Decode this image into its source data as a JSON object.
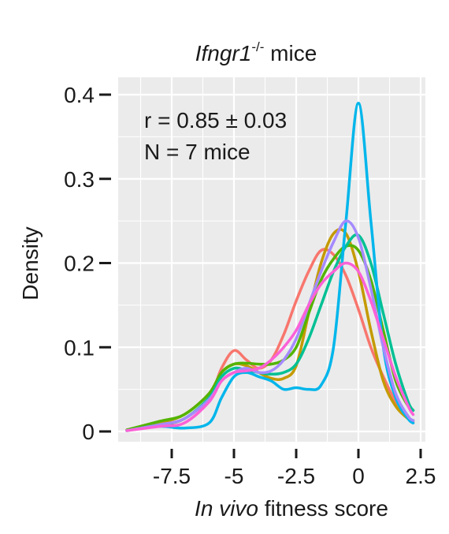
{
  "chart_data": {
    "type": "line",
    "title_italic": "Ifngr1",
    "title_superscript": "-/-",
    "title_rest": " mice",
    "xlabel_italic": "In vivo",
    "xlabel_rest": " fitness score",
    "ylabel": "Density",
    "xlim": [
      -9.3,
      2.2
    ],
    "ylim": [
      0,
      0.4
    ],
    "x_ticks": [
      -7.5,
      -5,
      -2.5,
      0,
      2.5
    ],
    "x_tick_labels": [
      "-7.5",
      "-5",
      "-2.5",
      "0",
      "2.5"
    ],
    "y_ticks": [
      0,
      0.1,
      0.2,
      0.3,
      0.4
    ],
    "y_tick_labels": [
      "0",
      "0.1",
      "0.2",
      "0.3",
      "0.4"
    ],
    "grid": true,
    "legend": "none",
    "annotations": [
      {
        "id": "corr",
        "parts": [
          "r = 0.85 ",
          "±",
          " 0.03"
        ]
      },
      {
        "id": "count",
        "parts": [
          "N = 7 mice"
        ]
      }
    ],
    "panel_background": "#ebebeb",
    "grid_color": "#ffffff",
    "series": [
      {
        "color": "#f8766d",
        "x": [
          -9.3,
          -8,
          -7,
          -6,
          -5.5,
          -5,
          -4.5,
          -4,
          -3.5,
          -3,
          -2.5,
          -2,
          -1.5,
          -1,
          -0.5,
          0,
          0.5,
          1,
          1.5,
          2,
          2.2
        ],
        "y": [
          0.001,
          0.007,
          0.015,
          0.04,
          0.075,
          0.096,
          0.085,
          0.075,
          0.085,
          0.115,
          0.155,
          0.19,
          0.215,
          0.21,
          0.185,
          0.145,
          0.1,
          0.065,
          0.035,
          0.015,
          0.011
        ]
      },
      {
        "color": "#c49a00",
        "x": [
          -9.3,
          -8,
          -7,
          -6,
          -5.5,
          -5,
          -4.5,
          -4,
          -3.5,
          -3,
          -2.5,
          -2,
          -1.5,
          -1,
          -0.5,
          0,
          0.5,
          1,
          1.5,
          2,
          2.2
        ],
        "y": [
          0.001,
          0.01,
          0.02,
          0.045,
          0.07,
          0.08,
          0.078,
          0.07,
          0.063,
          0.063,
          0.078,
          0.14,
          0.2,
          0.235,
          0.235,
          0.19,
          0.12,
          0.06,
          0.03,
          0.015,
          0.013
        ]
      },
      {
        "color": "#53b400",
        "x": [
          -9.3,
          -8,
          -7,
          -6,
          -5.5,
          -5,
          -4.5,
          -4,
          -3.5,
          -3,
          -2.5,
          -2,
          -1.5,
          -1,
          -0.5,
          0,
          0.5,
          1,
          1.5,
          2,
          2.2
        ],
        "y": [
          0.002,
          0.012,
          0.02,
          0.045,
          0.07,
          0.08,
          0.081,
          0.08,
          0.08,
          0.085,
          0.1,
          0.14,
          0.18,
          0.205,
          0.22,
          0.215,
          0.18,
          0.12,
          0.06,
          0.03,
          0.025
        ]
      },
      {
        "color": "#00c094",
        "x": [
          -9.3,
          -8,
          -7,
          -6,
          -5.5,
          -5,
          -4.5,
          -4,
          -3.5,
          -3,
          -2.5,
          -2,
          -1.5,
          -1,
          -0.5,
          0,
          0.5,
          1,
          1.5,
          2,
          2.2
        ],
        "y": [
          0.001,
          0.008,
          0.015,
          0.04,
          0.065,
          0.075,
          0.073,
          0.07,
          0.068,
          0.07,
          0.08,
          0.11,
          0.15,
          0.19,
          0.22,
          0.233,
          0.2,
          0.14,
          0.08,
          0.035,
          0.025
        ]
      },
      {
        "color": "#00b6eb",
        "x": [
          -9.3,
          -8,
          -7,
          -6,
          -5.5,
          -5,
          -4.5,
          -4,
          -3.5,
          -3,
          -2.5,
          -2,
          -1.5,
          -1,
          -0.5,
          0,
          0.5,
          1,
          1.5,
          2,
          2.2
        ],
        "y": [
          0.001,
          0.006,
          0.004,
          0.01,
          0.04,
          0.065,
          0.07,
          0.065,
          0.06,
          0.05,
          0.052,
          0.05,
          0.055,
          0.1,
          0.25,
          0.39,
          0.25,
          0.1,
          0.04,
          0.015,
          0.01
        ]
      },
      {
        "color": "#a58aff",
        "x": [
          -9.3,
          -8,
          -7,
          -6,
          -5.5,
          -5,
          -4.5,
          -4,
          -3.5,
          -3,
          -2.5,
          -2,
          -1.5,
          -1,
          -0.5,
          0,
          0.5,
          1,
          1.5,
          2,
          2.2
        ],
        "y": [
          0.001,
          0.008,
          0.015,
          0.038,
          0.06,
          0.07,
          0.075,
          0.07,
          0.072,
          0.085,
          0.11,
          0.15,
          0.19,
          0.225,
          0.25,
          0.23,
          0.17,
          0.1,
          0.045,
          0.018,
          0.013
        ]
      },
      {
        "color": "#fb61d7",
        "x": [
          -9.3,
          -8,
          -7,
          -6,
          -5.5,
          -5,
          -4.5,
          -4,
          -3.5,
          -3,
          -2.5,
          -2,
          -1.5,
          -1,
          -0.5,
          0,
          0.5,
          1,
          1.5,
          2,
          2.2
        ],
        "y": [
          0.001,
          0.006,
          0.01,
          0.035,
          0.06,
          0.07,
          0.072,
          0.075,
          0.085,
          0.1,
          0.12,
          0.15,
          0.175,
          0.19,
          0.2,
          0.19,
          0.155,
          0.11,
          0.065,
          0.03,
          0.02
        ]
      }
    ]
  }
}
